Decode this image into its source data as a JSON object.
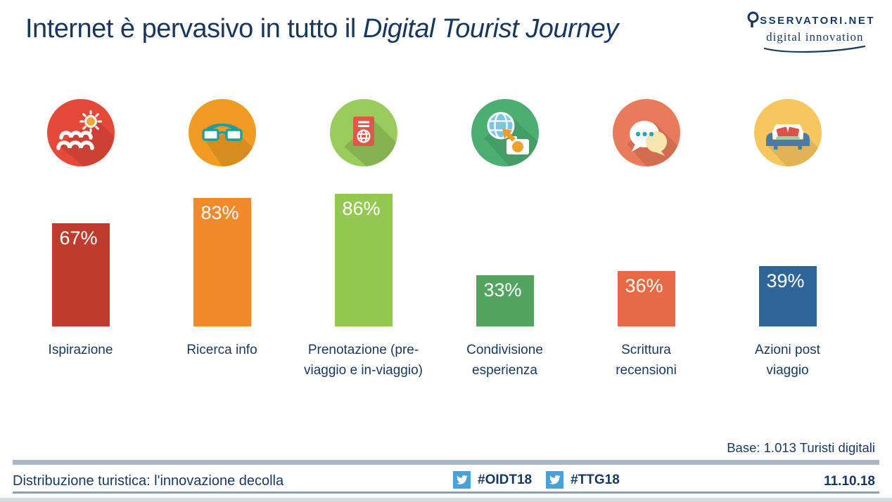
{
  "header": {
    "title_regular": "Internet è pervasivo in tutto il ",
    "title_italic": "Digital Tourist Journey",
    "logo": {
      "name_rest": "SSERVATORI",
      "name_tld": ".NET",
      "tagline": "digital innovation"
    }
  },
  "chart_data": {
    "type": "bar",
    "title": "Internet è pervasivo in tutto il Digital Tourist Journey",
    "categories": [
      "Ispirazione",
      "Ricerca info",
      "Prenotazione (pre-viaggio e in-viaggio)",
      "Condivisione esperienza",
      "Scrittura recensioni",
      "Azioni post viaggio"
    ],
    "values": [
      67,
      83,
      86,
      33,
      36,
      39
    ],
    "value_labels": [
      "67%",
      "83%",
      "86%",
      "33%",
      "36%",
      "39%"
    ],
    "bar_colors": [
      "#be3c2d",
      "#f08a2b",
      "#93c952",
      "#53a45f",
      "#e56a45",
      "#2f6699"
    ],
    "icons": [
      "sea-sun-icon",
      "eyeglasses-icon",
      "passport-icon",
      "globe-camera-icon",
      "chat-bubbles-icon",
      "sofa-icon"
    ],
    "icon_circle_colors": [
      "#e5493a",
      "#f09c24",
      "#9acb5d",
      "#4dae72",
      "#e97b5c",
      "#f7c65f"
    ],
    "ylim": [
      0,
      100
    ],
    "grid": false,
    "legend": "none",
    "base_note": "Base: 1.013 Turisti digitali"
  },
  "footer": {
    "left_text": "Distribuzione turistica: l'innovazione decolla",
    "hashtags": [
      "#OIDT18",
      "#TTG18"
    ],
    "date": "11.10.18"
  },
  "colors": {
    "navy": "#17375e",
    "twitter_blue": "#4aa0d8",
    "divider_gray": "#a7b7c4"
  }
}
